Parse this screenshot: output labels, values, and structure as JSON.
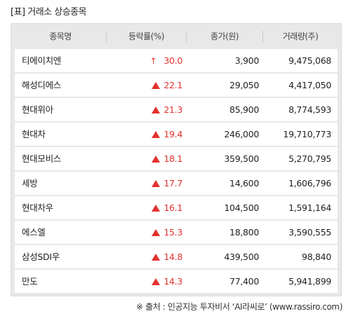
{
  "title": "[표] 거래소 상승종목",
  "header": {
    "name": "종목명",
    "rate": "등락률(%)",
    "price": "종가(원)",
    "volume": "거래량(주)"
  },
  "rows": [
    {
      "name": "티에이치엔",
      "indicator": "upper-limit-arrow",
      "rate": "30.0",
      "price": "3,900",
      "volume": "9,475,068"
    },
    {
      "name": "해성디에스",
      "indicator": "up-triangle",
      "rate": "22.1",
      "price": "29,050",
      "volume": "4,417,050"
    },
    {
      "name": "현대위아",
      "indicator": "up-triangle",
      "rate": "21.3",
      "price": "85,900",
      "volume": "8,774,593"
    },
    {
      "name": "현대차",
      "indicator": "up-triangle",
      "rate": "19.4",
      "price": "246,000",
      "volume": "19,710,773"
    },
    {
      "name": "현대모비스",
      "indicator": "up-triangle",
      "rate": "18.1",
      "price": "359,500",
      "volume": "5,270,795"
    },
    {
      "name": "세방",
      "indicator": "up-triangle",
      "rate": "17.7",
      "price": "14,600",
      "volume": "1,606,796"
    },
    {
      "name": "현대차우",
      "indicator": "up-triangle",
      "rate": "16.1",
      "price": "104,500",
      "volume": "1,591,164"
    },
    {
      "name": "에스엘",
      "indicator": "up-triangle",
      "rate": "15.3",
      "price": "18,800",
      "volume": "3,590,555"
    },
    {
      "name": "삼성SDI우",
      "indicator": "up-triangle",
      "rate": "14.8",
      "price": "439,500",
      "volume": "98,840"
    },
    {
      "name": "만도",
      "indicator": "up-triangle",
      "rate": "14.3",
      "price": "77,400",
      "volume": "5,941,899"
    }
  ],
  "source": "※ 출처 : 인공지능 투자비서 ‘AI라씨로’ (www.rassiro.com)",
  "colors": {
    "up": "#e4312e",
    "header_bg": "#e8e8e8",
    "row_bg": "#ffffff"
  }
}
